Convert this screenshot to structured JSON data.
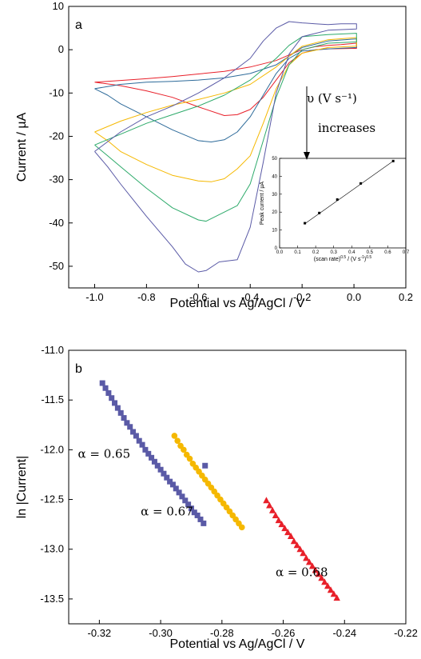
{
  "chart_data": [
    {
      "type": "line",
      "panel_label": "a",
      "xlabel": "Potential vs Ag/AgCl / V",
      "ylabel": "Current / µA",
      "xlim": [
        -1.1,
        0.2
      ],
      "ylim": [
        -55,
        10
      ],
      "xticks": [
        "-1.0",
        "-0.8",
        "-0.6",
        "-0.4",
        "-0.2",
        "0.0",
        "0.2"
      ],
      "yticks": [
        "10",
        "0",
        "-10",
        "-20",
        "-30",
        "-40",
        "-50"
      ],
      "annotation_rate": "υ (V s⁻¹)",
      "annotation_increases": "increases",
      "series": [
        {
          "color": "#e8202a",
          "forward": [
            [
              -1.0,
              -7.5
            ],
            [
              -0.9,
              -8.3
            ],
            [
              -0.8,
              -9.5
            ],
            [
              -0.7,
              -11.0
            ],
            [
              -0.6,
              -13.2
            ],
            [
              -0.5,
              -15.2
            ],
            [
              -0.45,
              -15.0
            ],
            [
              -0.4,
              -13.8
            ],
            [
              -0.35,
              -11.0
            ],
            [
              -0.3,
              -7.0
            ],
            [
              -0.25,
              -3.0
            ],
            [
              -0.2,
              -0.8
            ],
            [
              -0.15,
              0.0
            ],
            [
              -0.1,
              0.2
            ],
            [
              0.0,
              0.3
            ],
            [
              0.01,
              0.3
            ]
          ],
          "reverse": [
            [
              0.01,
              1.5
            ],
            [
              -0.05,
              1.2
            ],
            [
              -0.1,
              1.0
            ],
            [
              -0.15,
              0.7
            ],
            [
              -0.2,
              0.0
            ],
            [
              -0.25,
              -1.2
            ],
            [
              -0.3,
              -2.5
            ],
            [
              -0.4,
              -4.0
            ],
            [
              -0.5,
              -5.0
            ],
            [
              -0.6,
              -5.6
            ],
            [
              -0.7,
              -6.2
            ],
            [
              -0.8,
              -6.7
            ],
            [
              -0.9,
              -7.1
            ],
            [
              -1.0,
              -7.5
            ]
          ]
        },
        {
          "color": "#2e6b9a",
          "forward": [
            [
              -1.0,
              -9.0
            ],
            [
              -0.95,
              -10.5
            ],
            [
              -0.9,
              -12.5
            ],
            [
              -0.8,
              -15.5
            ],
            [
              -0.7,
              -18.5
            ],
            [
              -0.6,
              -21.0
            ],
            [
              -0.55,
              -21.3
            ],
            [
              -0.5,
              -20.8
            ],
            [
              -0.45,
              -19.0
            ],
            [
              -0.4,
              -15.5
            ],
            [
              -0.35,
              -10.5
            ],
            [
              -0.3,
              -5.5
            ],
            [
              -0.25,
              -2.0
            ],
            [
              -0.2,
              -0.3
            ],
            [
              -0.1,
              0.2
            ],
            [
              0.01,
              0.5
            ]
          ],
          "reverse": [
            [
              0.01,
              2.5
            ],
            [
              -0.1,
              2.0
            ],
            [
              -0.2,
              0.5
            ],
            [
              -0.25,
              -1.5
            ],
            [
              -0.3,
              -3.5
            ],
            [
              -0.4,
              -5.5
            ],
            [
              -0.5,
              -6.5
            ],
            [
              -0.6,
              -7.0
            ],
            [
              -0.7,
              -7.3
            ],
            [
              -0.8,
              -7.5
            ],
            [
              -0.9,
              -8.0
            ],
            [
              -1.0,
              -9.0
            ]
          ]
        },
        {
          "color": "#f5b800",
          "forward": [
            [
              -1.0,
              -19.0
            ],
            [
              -0.95,
              -21.0
            ],
            [
              -0.9,
              -23.5
            ],
            [
              -0.8,
              -26.5
            ],
            [
              -0.7,
              -29.0
            ],
            [
              -0.6,
              -30.3
            ],
            [
              -0.55,
              -30.5
            ],
            [
              -0.5,
              -29.8
            ],
            [
              -0.45,
              -27.5
            ],
            [
              -0.4,
              -24.5
            ],
            [
              -0.35,
              -17.0
            ],
            [
              -0.3,
              -9.0
            ],
            [
              -0.25,
              -3.5
            ],
            [
              -0.2,
              -0.8
            ],
            [
              -0.1,
              0.5
            ],
            [
              0.01,
              0.8
            ]
          ],
          "reverse": [
            [
              0.01,
              2.8
            ],
            [
              -0.1,
              2.3
            ],
            [
              -0.2,
              0.8
            ],
            [
              -0.25,
              -1.5
            ],
            [
              -0.3,
              -4.0
            ],
            [
              -0.4,
              -8.0
            ],
            [
              -0.5,
              -10.0
            ],
            [
              -0.6,
              -11.5
            ],
            [
              -0.7,
              -12.8
            ],
            [
              -0.8,
              -14.5
            ],
            [
              -0.9,
              -16.5
            ],
            [
              -1.0,
              -19.0
            ]
          ]
        },
        {
          "color": "#2daa6a",
          "forward": [
            [
              -1.0,
              -22.0
            ],
            [
              -0.95,
              -24.5
            ],
            [
              -0.9,
              -27.0
            ],
            [
              -0.8,
              -32.0
            ],
            [
              -0.7,
              -36.5
            ],
            [
              -0.6,
              -39.3
            ],
            [
              -0.57,
              -39.6
            ],
            [
              -0.5,
              -37.5
            ],
            [
              -0.45,
              -36.0
            ],
            [
              -0.4,
              -31.0
            ],
            [
              -0.35,
              -21.0
            ],
            [
              -0.3,
              -11.0
            ],
            [
              -0.25,
              -3.5
            ],
            [
              -0.2,
              0.0
            ],
            [
              -0.1,
              1.5
            ],
            [
              0.01,
              1.8
            ]
          ],
          "reverse": [
            [
              0.01,
              3.8
            ],
            [
              -0.1,
              3.5
            ],
            [
              -0.2,
              3.0
            ],
            [
              -0.25,
              1.0
            ],
            [
              -0.3,
              -2.0
            ],
            [
              -0.4,
              -7.0
            ],
            [
              -0.5,
              -10.5
            ],
            [
              -0.6,
              -13.0
            ],
            [
              -0.7,
              -15.0
            ],
            [
              -0.8,
              -17.0
            ],
            [
              -0.9,
              -19.5
            ],
            [
              -1.0,
              -22.0
            ]
          ]
        },
        {
          "color": "#5a5aa6",
          "forward": [
            [
              -1.0,
              -23.5
            ],
            [
              -0.95,
              -27.0
            ],
            [
              -0.9,
              -31.0
            ],
            [
              -0.8,
              -38.5
            ],
            [
              -0.7,
              -45.5
            ],
            [
              -0.65,
              -49.5
            ],
            [
              -0.6,
              -51.3
            ],
            [
              -0.57,
              -51.0
            ],
            [
              -0.52,
              -49.0
            ],
            [
              -0.45,
              -48.5
            ],
            [
              -0.4,
              -41.0
            ],
            [
              -0.35,
              -26.0
            ],
            [
              -0.3,
              -10.0
            ],
            [
              -0.25,
              -1.0
            ],
            [
              -0.2,
              3.0
            ],
            [
              -0.1,
              4.5
            ],
            [
              0.01,
              4.8
            ]
          ],
          "reverse": [
            [
              0.01,
              6.0
            ],
            [
              -0.05,
              6.0
            ],
            [
              -0.1,
              5.8
            ],
            [
              -0.15,
              6.0
            ],
            [
              -0.2,
              6.2
            ],
            [
              -0.25,
              6.5
            ],
            [
              -0.3,
              5.0
            ],
            [
              -0.35,
              2.0
            ],
            [
              -0.4,
              -2.0
            ],
            [
              -0.5,
              -6.5
            ],
            [
              -0.6,
              -10.0
            ],
            [
              -0.7,
              -13.0
            ],
            [
              -0.8,
              -15.5
            ],
            [
              -0.9,
              -19.0
            ],
            [
              -1.0,
              -23.5
            ]
          ]
        }
      ]
    },
    {
      "type": "scatter",
      "inset_of": "a",
      "xlabel": "(scan rate)0.5 / (V s-1)0.5",
      "xlabel_parts": [
        "(scan rate)",
        "0.5",
        " / (V s",
        "-1",
        ")",
        "0.5"
      ],
      "ylabel": "Peak current / µA",
      "xlim": [
        0.0,
        0.7
      ],
      "ylim": [
        0,
        50
      ],
      "xticks": [
        "0.0",
        "0.1",
        "0.2",
        "0.3",
        "0.4",
        "0.5",
        "0.6",
        "0.7"
      ],
      "yticks": [
        "0",
        "10",
        "20",
        "30",
        "40",
        "50"
      ],
      "points": [
        [
          0.14,
          13.8
        ],
        [
          0.22,
          19.5
        ],
        [
          0.32,
          27.0
        ],
        [
          0.45,
          36.0
        ],
        [
          0.63,
          48.5
        ]
      ],
      "fit": [
        [
          0.14,
          13.5
        ],
        [
          0.63,
          48.5
        ]
      ]
    },
    {
      "type": "scatter",
      "panel_label": "b",
      "xlabel": "Potential vs Ag/AgCl / V",
      "ylabel": "ln |Current|",
      "xlim": [
        -0.33,
        -0.22
      ],
      "ylim": [
        -13.75,
        -11.0
      ],
      "xticks": [
        "-0.32",
        "-0.30",
        "-0.28",
        "-0.26",
        "-0.24",
        "-0.22"
      ],
      "yticks": [
        "-11.0",
        "-11.5",
        "-12.0",
        "-12.5",
        "-13.0",
        "-13.5"
      ],
      "series": [
        {
          "marker": "square",
          "color": "#5a5aa6",
          "annotation": "α = 0.65",
          "label_at": [
            -0.327,
            -12.08
          ],
          "points": [
            [
              -0.319,
              -11.33
            ],
            [
              -0.318,
              -11.38
            ],
            [
              -0.317,
              -11.43
            ],
            [
              -0.316,
              -11.48
            ],
            [
              -0.315,
              -11.53
            ],
            [
              -0.314,
              -11.58
            ],
            [
              -0.313,
              -11.63
            ],
            [
              -0.312,
              -11.68
            ],
            [
              -0.311,
              -11.73
            ],
            [
              -0.31,
              -11.77
            ],
            [
              -0.309,
              -11.82
            ],
            [
              -0.308,
              -11.86
            ],
            [
              -0.307,
              -11.91
            ],
            [
              -0.306,
              -11.95
            ],
            [
              -0.305,
              -12.0
            ],
            [
              -0.304,
              -12.04
            ],
            [
              -0.303,
              -12.08
            ],
            [
              -0.302,
              -12.12
            ],
            [
              -0.301,
              -12.16
            ],
            [
              -0.3,
              -12.2
            ],
            [
              -0.299,
              -12.24
            ],
            [
              -0.298,
              -12.28
            ],
            [
              -0.297,
              -12.32
            ],
            [
              -0.296,
              -12.35
            ],
            [
              -0.295,
              -12.39
            ],
            [
              -0.294,
              -12.43
            ],
            [
              -0.293,
              -12.47
            ],
            [
              -0.292,
              -12.51
            ],
            [
              -0.291,
              -12.55
            ],
            [
              -0.29,
              -12.59
            ],
            [
              -0.289,
              -12.63
            ],
            [
              -0.288,
              -12.66
            ],
            [
              -0.287,
              -12.7
            ],
            [
              -0.286,
              -12.74
            ],
            [
              -0.2855,
              -12.16
            ]
          ]
        },
        {
          "marker": "circle",
          "color": "#f5b800",
          "annotation": "α = 0.67",
          "label_at": [
            -0.3065,
            -12.66
          ],
          "points": [
            [
              -0.2955,
              -11.86
            ],
            [
              -0.2945,
              -11.91
            ],
            [
              -0.2935,
              -11.96
            ],
            [
              -0.2925,
              -12.0
            ],
            [
              -0.2915,
              -12.05
            ],
            [
              -0.2905,
              -12.09
            ],
            [
              -0.2895,
              -12.14
            ],
            [
              -0.2885,
              -12.18
            ],
            [
              -0.2875,
              -12.22
            ],
            [
              -0.2865,
              -12.26
            ],
            [
              -0.2855,
              -12.3
            ],
            [
              -0.2845,
              -12.34
            ],
            [
              -0.2835,
              -12.38
            ],
            [
              -0.2825,
              -12.42
            ],
            [
              -0.2815,
              -12.46
            ],
            [
              -0.2805,
              -12.5
            ],
            [
              -0.2795,
              -12.54
            ],
            [
              -0.2785,
              -12.58
            ],
            [
              -0.2775,
              -12.62
            ],
            [
              -0.2765,
              -12.66
            ],
            [
              -0.2755,
              -12.7
            ],
            [
              -0.2745,
              -12.74
            ],
            [
              -0.2735,
              -12.78
            ]
          ]
        },
        {
          "marker": "triangle",
          "color": "#e8202a",
          "annotation": "α = 0.68",
          "label_at": [
            -0.2625,
            -13.27
          ],
          "points": [
            [
              -0.2655,
              -12.51
            ],
            [
              -0.2645,
              -12.56
            ],
            [
              -0.2635,
              -12.61
            ],
            [
              -0.2625,
              -12.66
            ],
            [
              -0.2615,
              -12.71
            ],
            [
              -0.2605,
              -12.75
            ],
            [
              -0.2595,
              -12.79
            ],
            [
              -0.2585,
              -12.83
            ],
            [
              -0.2575,
              -12.87
            ],
            [
              -0.2565,
              -12.92
            ],
            [
              -0.2555,
              -12.96
            ],
            [
              -0.2545,
              -13.0
            ],
            [
              -0.2535,
              -13.04
            ],
            [
              -0.2525,
              -13.09
            ],
            [
              -0.2515,
              -13.13
            ],
            [
              -0.2505,
              -13.17
            ],
            [
              -0.2495,
              -13.21
            ],
            [
              -0.2485,
              -13.25
            ],
            [
              -0.2475,
              -13.29
            ],
            [
              -0.2465,
              -13.33
            ],
            [
              -0.2455,
              -13.37
            ],
            [
              -0.2445,
              -13.41
            ],
            [
              -0.2435,
              -13.45
            ],
            [
              -0.2425,
              -13.49
            ]
          ]
        }
      ]
    }
  ]
}
